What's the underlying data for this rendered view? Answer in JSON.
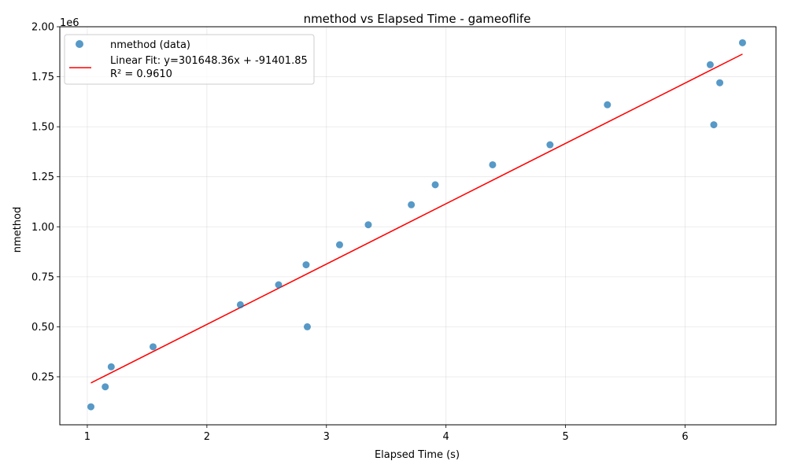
{
  "chart_data": {
    "type": "scatter",
    "title": "nmethod vs Elapsed Time - gameoflife",
    "xlabel": "Elapsed Time (s)",
    "ylabel": "nmethod",
    "y_offset_label": "1e6",
    "xlim": [
      0.77,
      6.76
    ],
    "ylim": [
      0.01,
      2.0
    ],
    "x_ticks": [
      1,
      2,
      3,
      4,
      5,
      6
    ],
    "y_ticks": [
      0.25,
      0.5,
      0.75,
      1.0,
      1.25,
      1.5,
      1.75,
      2.0
    ],
    "y_tick_labels": [
      "0.25",
      "0.50",
      "0.75",
      "1.00",
      "1.25",
      "1.50",
      "1.75",
      "2.00"
    ],
    "grid": true,
    "legend_position": "top-left",
    "series": [
      {
        "name": "nmethod (data)",
        "kind": "points",
        "color": "#1f77b4",
        "points": [
          [
            1.03,
            0.1
          ],
          [
            1.15,
            0.2
          ],
          [
            1.2,
            0.3
          ],
          [
            1.55,
            0.4
          ],
          [
            2.28,
            0.61
          ],
          [
            2.6,
            0.71
          ],
          [
            2.83,
            0.81
          ],
          [
            2.84,
            0.5
          ],
          [
            3.11,
            0.91
          ],
          [
            3.35,
            1.01
          ],
          [
            3.71,
            1.11
          ],
          [
            3.91,
            1.21
          ],
          [
            4.39,
            1.31
          ],
          [
            4.87,
            1.41
          ],
          [
            5.35,
            1.61
          ],
          [
            6.21,
            1.81
          ],
          [
            6.24,
            1.51
          ],
          [
            6.29,
            1.72
          ],
          [
            6.48,
            1.92
          ]
        ]
      },
      {
        "name": "Linear Fit: y=301648.36x + -91401.85",
        "name_line2": "R² = 0.9610",
        "kind": "line",
        "color": "#ff0000",
        "slope": 301648.36,
        "intercept": -91401.85,
        "x_range": [
          1.03,
          6.48
        ]
      }
    ]
  }
}
